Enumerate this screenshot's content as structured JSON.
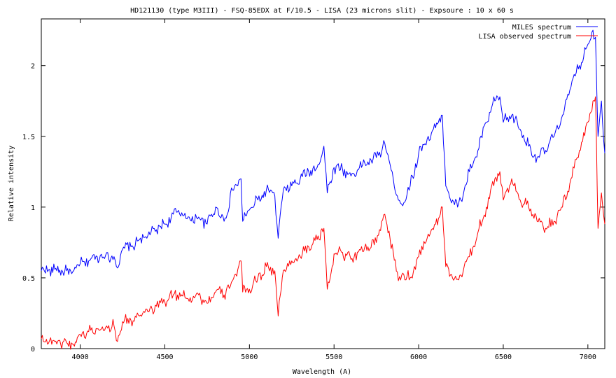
{
  "chart_data": {
    "type": "line",
    "title": "HD121130 (type M3III) - FSQ-85EDX at F/10.5 - LISA (23 microns slit) - Expsoure : 10  x 60 s",
    "xlabel": "Wavelength (A)",
    "ylabel": "Relative intensity",
    "xlim": [
      3770,
      7100
    ],
    "ylim": [
      0,
      2.33
    ],
    "x_ticks": [
      4000,
      4500,
      5000,
      5500,
      6000,
      6500,
      7000
    ],
    "y_ticks": [
      0,
      0.5,
      1,
      1.5,
      2
    ],
    "x_tick_labels": [
      "4000",
      "4500",
      "5000",
      "5500",
      "6000",
      "6500",
      "7000"
    ],
    "y_tick_labels": [
      "0",
      "0.5",
      "1",
      "1.5",
      "2"
    ],
    "grid": false,
    "legend_position": "top-right",
    "series": [
      {
        "name": "MILES spectrum",
        "color": "#0000ff",
        "points": [
          [
            3770,
            0.55
          ],
          [
            3850,
            0.56
          ],
          [
            3920,
            0.55
          ],
          [
            3950,
            0.53
          ],
          [
            4000,
            0.6
          ],
          [
            4050,
            0.62
          ],
          [
            4100,
            0.65
          ],
          [
            4150,
            0.66
          ],
          [
            4200,
            0.65
          ],
          [
            4220,
            0.57
          ],
          [
            4250,
            0.7
          ],
          [
            4300,
            0.72
          ],
          [
            4350,
            0.77
          ],
          [
            4400,
            0.8
          ],
          [
            4450,
            0.84
          ],
          [
            4500,
            0.88
          ],
          [
            4550,
            0.95
          ],
          [
            4600,
            0.96
          ],
          [
            4650,
            0.91
          ],
          [
            4700,
            0.93
          ],
          [
            4750,
            0.88
          ],
          [
            4800,
            1.0
          ],
          [
            4850,
            0.9
          ],
          [
            4900,
            1.12
          ],
          [
            4950,
            1.2
          ],
          [
            4960,
            0.9
          ],
          [
            5000,
            0.98
          ],
          [
            5050,
            1.05
          ],
          [
            5100,
            1.12
          ],
          [
            5150,
            1.08
          ],
          [
            5170,
            0.78
          ],
          [
            5200,
            1.12
          ],
          [
            5250,
            1.15
          ],
          [
            5300,
            1.2
          ],
          [
            5350,
            1.25
          ],
          [
            5400,
            1.28
          ],
          [
            5440,
            1.43
          ],
          [
            5460,
            1.1
          ],
          [
            5500,
            1.28
          ],
          [
            5550,
            1.27
          ],
          [
            5600,
            1.22
          ],
          [
            5650,
            1.28
          ],
          [
            5700,
            1.32
          ],
          [
            5750,
            1.35
          ],
          [
            5800,
            1.45
          ],
          [
            5850,
            1.2
          ],
          [
            5880,
            1.05
          ],
          [
            5900,
            1.02
          ],
          [
            5950,
            1.15
          ],
          [
            6000,
            1.38
          ],
          [
            6050,
            1.48
          ],
          [
            6100,
            1.56
          ],
          [
            6140,
            1.65
          ],
          [
            6160,
            1.15
          ],
          [
            6200,
            1.05
          ],
          [
            6230,
            1.0
          ],
          [
            6250,
            1.05
          ],
          [
            6300,
            1.25
          ],
          [
            6350,
            1.4
          ],
          [
            6400,
            1.6
          ],
          [
            6450,
            1.75
          ],
          [
            6480,
            1.78
          ],
          [
            6500,
            1.6
          ],
          [
            6550,
            1.65
          ],
          [
            6600,
            1.55
          ],
          [
            6650,
            1.43
          ],
          [
            6700,
            1.35
          ],
          [
            6750,
            1.4
          ],
          [
            6800,
            1.5
          ],
          [
            6850,
            1.65
          ],
          [
            6900,
            1.85
          ],
          [
            6950,
            2.0
          ],
          [
            7000,
            2.15
          ],
          [
            7030,
            2.25
          ],
          [
            7045,
            2.2
          ],
          [
            7060,
            1.5
          ],
          [
            7080,
            1.75
          ],
          [
            7100,
            1.38
          ]
        ]
      },
      {
        "name": "LISA observed spectrum",
        "color": "#ff0000",
        "points": [
          [
            3770,
            0.07
          ],
          [
            3850,
            0.05
          ],
          [
            3920,
            0.04
          ],
          [
            3960,
            0.03
          ],
          [
            4000,
            0.1
          ],
          [
            4050,
            0.12
          ],
          [
            4100,
            0.14
          ],
          [
            4150,
            0.15
          ],
          [
            4200,
            0.16
          ],
          [
            4220,
            0.05
          ],
          [
            4250,
            0.19
          ],
          [
            4300,
            0.2
          ],
          [
            4350,
            0.23
          ],
          [
            4400,
            0.26
          ],
          [
            4450,
            0.3
          ],
          [
            4500,
            0.33
          ],
          [
            4550,
            0.38
          ],
          [
            4600,
            0.38
          ],
          [
            4650,
            0.36
          ],
          [
            4700,
            0.38
          ],
          [
            4750,
            0.32
          ],
          [
            4800,
            0.4
          ],
          [
            4850,
            0.38
          ],
          [
            4900,
            0.48
          ],
          [
            4950,
            0.62
          ],
          [
            4960,
            0.4
          ],
          [
            5000,
            0.42
          ],
          [
            5050,
            0.5
          ],
          [
            5100,
            0.58
          ],
          [
            5150,
            0.55
          ],
          [
            5170,
            0.23
          ],
          [
            5200,
            0.55
          ],
          [
            5250,
            0.62
          ],
          [
            5300,
            0.65
          ],
          [
            5350,
            0.72
          ],
          [
            5400,
            0.77
          ],
          [
            5440,
            0.85
          ],
          [
            5460,
            0.42
          ],
          [
            5500,
            0.67
          ],
          [
            5550,
            0.68
          ],
          [
            5600,
            0.63
          ],
          [
            5650,
            0.7
          ],
          [
            5700,
            0.72
          ],
          [
            5750,
            0.75
          ],
          [
            5800,
            0.95
          ],
          [
            5850,
            0.68
          ],
          [
            5880,
            0.48
          ],
          [
            5900,
            0.52
          ],
          [
            5950,
            0.5
          ],
          [
            6000,
            0.65
          ],
          [
            6050,
            0.78
          ],
          [
            6100,
            0.88
          ],
          [
            6140,
            1.0
          ],
          [
            6160,
            0.58
          ],
          [
            6200,
            0.5
          ],
          [
            6230,
            0.49
          ],
          [
            6250,
            0.52
          ],
          [
            6300,
            0.65
          ],
          [
            6350,
            0.82
          ],
          [
            6400,
            1.0
          ],
          [
            6450,
            1.2
          ],
          [
            6480,
            1.25
          ],
          [
            6500,
            1.05
          ],
          [
            6550,
            1.2
          ],
          [
            6600,
            1.05
          ],
          [
            6650,
            1.0
          ],
          [
            6700,
            0.9
          ],
          [
            6750,
            0.85
          ],
          [
            6800,
            0.9
          ],
          [
            6850,
            1.0
          ],
          [
            6900,
            1.2
          ],
          [
            6950,
            1.4
          ],
          [
            7000,
            1.6
          ],
          [
            7030,
            1.75
          ],
          [
            7045,
            1.78
          ],
          [
            7060,
            0.85
          ],
          [
            7080,
            1.1
          ],
          [
            7100,
            0.88
          ]
        ]
      }
    ]
  }
}
